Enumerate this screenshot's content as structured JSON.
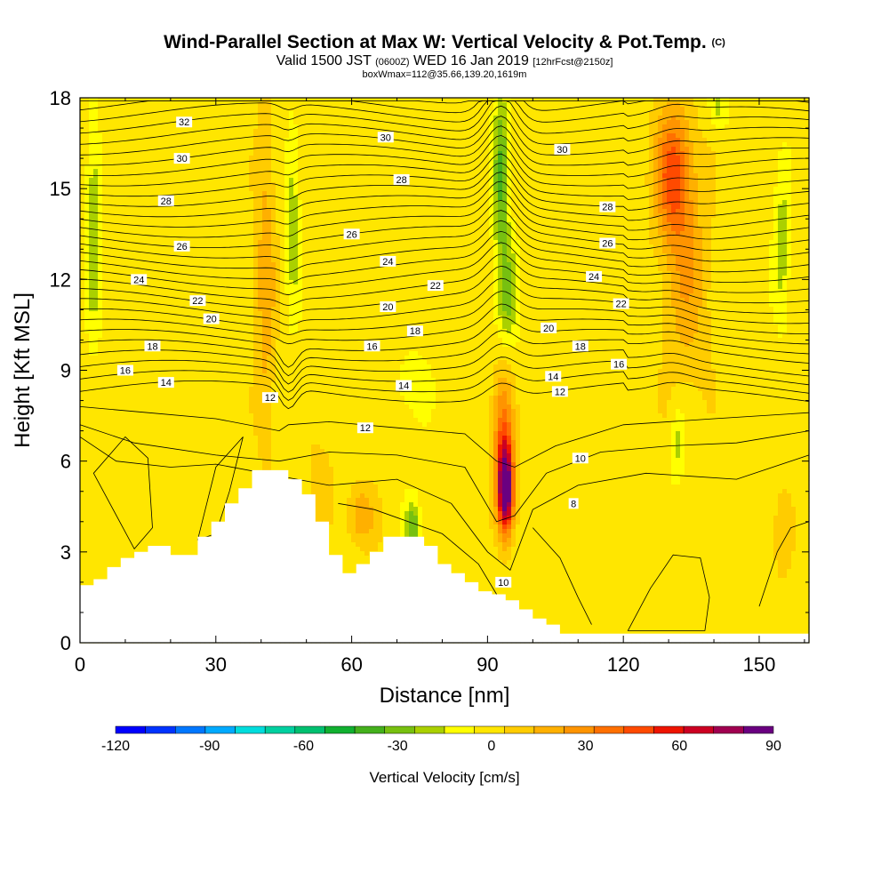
{
  "title": {
    "main": "Wind-Parallel Section at Max W: Vertical Velocity & Pot.Temp.",
    "main_units": "(C)",
    "valid_a": "Valid 1500 JST",
    "valid_b": "(0600Z)",
    "valid_c": "WED 16 Jan 2019",
    "valid_d": "[12hrFcst@2150z]",
    "box": "boxWmax=112@35.66,139.20,1619m"
  },
  "chart_data": {
    "type": "heatmap",
    "xlabel": "Distance [nm]",
    "ylabel": "Height [Kft MSL]",
    "xlim": [
      0,
      161
    ],
    "ylim": [
      0,
      18
    ],
    "xticks": [
      0,
      30,
      60,
      90,
      120,
      150
    ],
    "yticks": [
      0,
      3,
      6,
      9,
      12,
      15,
      18
    ],
    "grid": false,
    "colorbar": {
      "label": "Vertical Velocity [cm/s]",
      "min": -120,
      "max": 90,
      "step": 10,
      "tick_labels": [
        -120,
        -90,
        -60,
        -30,
        0,
        30,
        60,
        90
      ],
      "colors": [
        "#0000ff",
        "#0033ff",
        "#0077ff",
        "#00aaff",
        "#00dddd",
        "#00d0a0",
        "#00c070",
        "#11b030",
        "#44b01c",
        "#77c010",
        "#aad000",
        "#ffff00",
        "#ffe600",
        "#ffcc00",
        "#ffb000",
        "#ff9400",
        "#ff7000",
        "#ff4a00",
        "#ee1400",
        "#cc0022",
        "#a00050",
        "#6a0080"
      ]
    },
    "theta_contours": {
      "units": "C",
      "label_values": [
        8,
        10,
        12,
        14,
        16,
        18,
        20,
        22,
        24,
        26,
        28,
        30,
        32
      ]
    },
    "terrain": {
      "x": [
        0,
        3,
        6,
        9,
        12,
        15,
        18,
        20,
        23,
        26,
        29,
        32,
        35,
        38,
        41,
        43,
        46,
        49,
        52,
        55,
        58,
        61,
        64,
        67,
        70,
        73,
        76,
        79,
        82,
        85,
        88,
        91,
        94,
        97,
        100,
        103,
        106,
        109,
        112,
        115,
        118,
        121,
        124,
        127,
        130,
        133,
        136,
        139,
        142,
        145,
        148,
        151,
        154,
        157,
        161
      ],
      "y": [
        1.9,
        2.1,
        2.5,
        2.8,
        3.0,
        3.2,
        3.2,
        2.9,
        2.9,
        3.5,
        4.0,
        4.6,
        5.1,
        5.7,
        5.7,
        5.7,
        5.4,
        4.9,
        4.0,
        2.9,
        2.3,
        2.6,
        3.0,
        3.5,
        3.5,
        3.5,
        3.2,
        2.6,
        2.3,
        2.0,
        1.7,
        1.6,
        1.4,
        1.1,
        0.8,
        0.6,
        0.3,
        0.3,
        0.3,
        0.3,
        0.3,
        0.3,
        0.3,
        0.3,
        0.3,
        0.3,
        0.3,
        0.3,
        0.3,
        0.3,
        0.3,
        0.3,
        0.3,
        0.3,
        0.3
      ]
    },
    "annotations": [
      {
        "text": "32",
        "x": 23,
        "y": 17.2
      },
      {
        "text": "30",
        "x": 22.5,
        "y": 16.0
      },
      {
        "text": "28",
        "x": 19,
        "y": 14.6
      },
      {
        "text": "26",
        "x": 22.5,
        "y": 13.1
      },
      {
        "text": "24",
        "x": 13,
        "y": 12.0
      },
      {
        "text": "22",
        "x": 26,
        "y": 11.3
      },
      {
        "text": "20",
        "x": 29,
        "y": 10.7
      },
      {
        "text": "18",
        "x": 16,
        "y": 9.8
      },
      {
        "text": "16",
        "x": 10,
        "y": 9.0
      },
      {
        "text": "14",
        "x": 19,
        "y": 8.6
      },
      {
        "text": "12",
        "x": 42,
        "y": 8.1
      },
      {
        "text": "30",
        "x": 67.5,
        "y": 16.7
      },
      {
        "text": "28",
        "x": 71,
        "y": 15.3
      },
      {
        "text": "26",
        "x": 60,
        "y": 13.5
      },
      {
        "text": "24",
        "x": 68,
        "y": 12.6
      },
      {
        "text": "22",
        "x": 78.5,
        "y": 11.8
      },
      {
        "text": "20",
        "x": 68,
        "y": 11.1
      },
      {
        "text": "18",
        "x": 74,
        "y": 10.3
      },
      {
        "text": "16",
        "x": 64.5,
        "y": 9.8
      },
      {
        "text": "14",
        "x": 71.5,
        "y": 8.5
      },
      {
        "text": "12",
        "x": 63,
        "y": 7.1
      },
      {
        "text": "30",
        "x": 106.5,
        "y": 16.3
      },
      {
        "text": "28",
        "x": 116.5,
        "y": 14.4
      },
      {
        "text": "26",
        "x": 116.5,
        "y": 13.2
      },
      {
        "text": "24",
        "x": 113.5,
        "y": 12.1
      },
      {
        "text": "22",
        "x": 119.5,
        "y": 11.2
      },
      {
        "text": "20",
        "x": 103.5,
        "y": 10.4
      },
      {
        "text": "18",
        "x": 110.5,
        "y": 9.8
      },
      {
        "text": "16",
        "x": 119,
        "y": 9.2
      },
      {
        "text": "14",
        "x": 104.5,
        "y": 8.8
      },
      {
        "text": "12",
        "x": 106,
        "y": 8.3
      },
      {
        "text": "10",
        "x": 110.5,
        "y": 6.1
      },
      {
        "text": "8",
        "x": 109,
        "y": 4.6
      },
      {
        "text": "10",
        "x": 93.5,
        "y": 2.0
      }
    ]
  }
}
